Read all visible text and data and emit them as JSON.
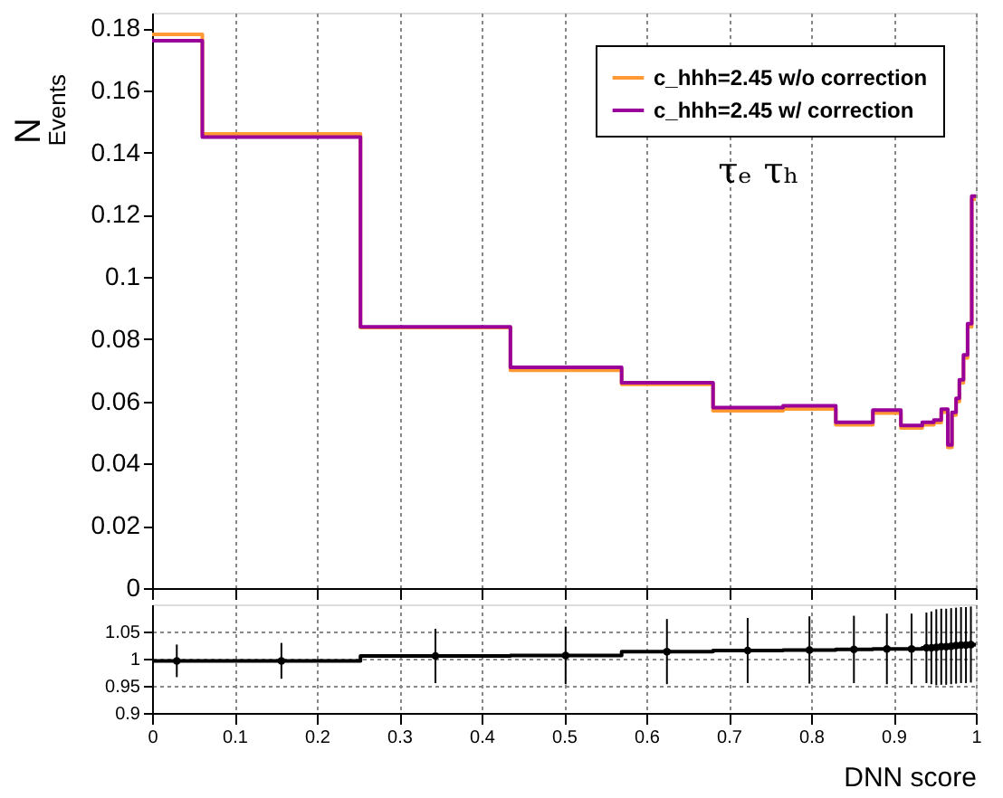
{
  "chart_data": [
    {
      "type": "step",
      "ylabel": "N$_{Events}$",
      "xlim": [
        0,
        1
      ],
      "xticks": [
        0,
        0.1,
        0.2,
        0.3,
        0.4,
        0.5,
        0.6,
        0.7,
        0.8,
        0.9,
        1
      ],
      "ylim": [
        0,
        0.185
      ],
      "yticks": [
        0,
        0.02,
        0.04,
        0.06,
        0.08,
        0.1,
        0.12,
        0.14,
        0.16,
        0.18
      ],
      "grid": "x",
      "legend": "top right",
      "tick_labels": "y",
      "x": [
        0,
        0.061,
        0.253,
        0.435,
        0.57,
        0.681,
        0.766,
        0.83,
        0.875,
        0.909,
        0.935,
        0.949,
        0.958,
        0.966,
        0.971,
        0.976,
        0.98,
        0.985,
        0.99,
        0.995
      ],
      "series": [
        {
          "name": "c_hhh=2.45 w/o correction",
          "color": "#ff9933",
          "values": [
            0.178,
            0.146,
            0.0838,
            0.07,
            0.0655,
            0.057,
            0.0576,
            0.0525,
            0.0563,
            0.0515,
            0.0525,
            0.0532,
            0.0566,
            0.0452,
            0.0556,
            0.06,
            0.066,
            0.074,
            0.084,
            0.125
          ]
        },
        {
          "name": "c_hhh=2.45 w/ correction",
          "color": "#990099",
          "values": [
            0.176,
            0.145,
            0.084,
            0.071,
            0.066,
            0.058,
            0.0586,
            0.0533,
            0.0572,
            0.0523,
            0.0533,
            0.054,
            0.0575,
            0.046,
            0.0565,
            0.061,
            0.067,
            0.075,
            0.085,
            0.126
          ]
        }
      ],
      "annotations": [
        "τₑ τₕ"
      ]
    },
    {
      "type": "step",
      "xlabel": "DNN score",
      "xlim": [
        0,
        1
      ],
      "xticks": [
        0,
        0.1,
        0.2,
        0.3,
        0.4,
        0.5,
        0.6,
        0.7,
        0.8,
        0.9,
        1
      ],
      "ylim": [
        0.9,
        1.1
      ],
      "yticks": [
        0.9,
        0.95,
        1,
        1.05
      ],
      "grid": true,
      "series": [
        {
          "type": "step",
          "color": "#000000",
          "x": [
            0,
            0.061,
            0.253,
            0.435,
            0.57,
            0.681,
            0.766,
            0.83,
            0.875,
            0.909,
            0.935,
            0.949,
            0.958,
            0.966,
            0.971,
            0.976,
            0.98,
            0.985,
            0.99,
            0.995
          ],
          "values": [
            0.996,
            0.996,
            1.005,
            1.006,
            1.013,
            1.015,
            1.016,
            1.017,
            1.018,
            1.018,
            1.02,
            1.02,
            1.021,
            1.022,
            1.022,
            1.023,
            1.024,
            1.025,
            1.025,
            1.026
          ]
        },
        {
          "type": "scatter",
          "color": "#000000",
          "marker": "circle",
          "x": [
            0.03,
            0.157,
            0.344,
            0.502,
            0.625,
            0.723,
            0.798,
            0.852,
            0.892,
            0.922,
            0.94,
            0.946,
            0.952,
            0.958,
            0.964,
            0.97,
            0.976,
            0.982,
            0.988,
            0.994
          ],
          "values": [
            0.996,
            0.996,
            1.005,
            1.006,
            1.013,
            1.015,
            1.016,
            1.017,
            1.018,
            1.018,
            1.02,
            1.02,
            1.021,
            1.022,
            1.022,
            1.023,
            1.024,
            1.025,
            1.025,
            1.026
          ],
          "errors": [
            0.03,
            0.033,
            0.05,
            0.053,
            0.06,
            0.06,
            0.062,
            0.062,
            0.065,
            0.065,
            0.065,
            0.067,
            0.07,
            0.07,
            0.07,
            0.07,
            0.07,
            0.07,
            0.07,
            0.07
          ]
        }
      ]
    }
  ]
}
